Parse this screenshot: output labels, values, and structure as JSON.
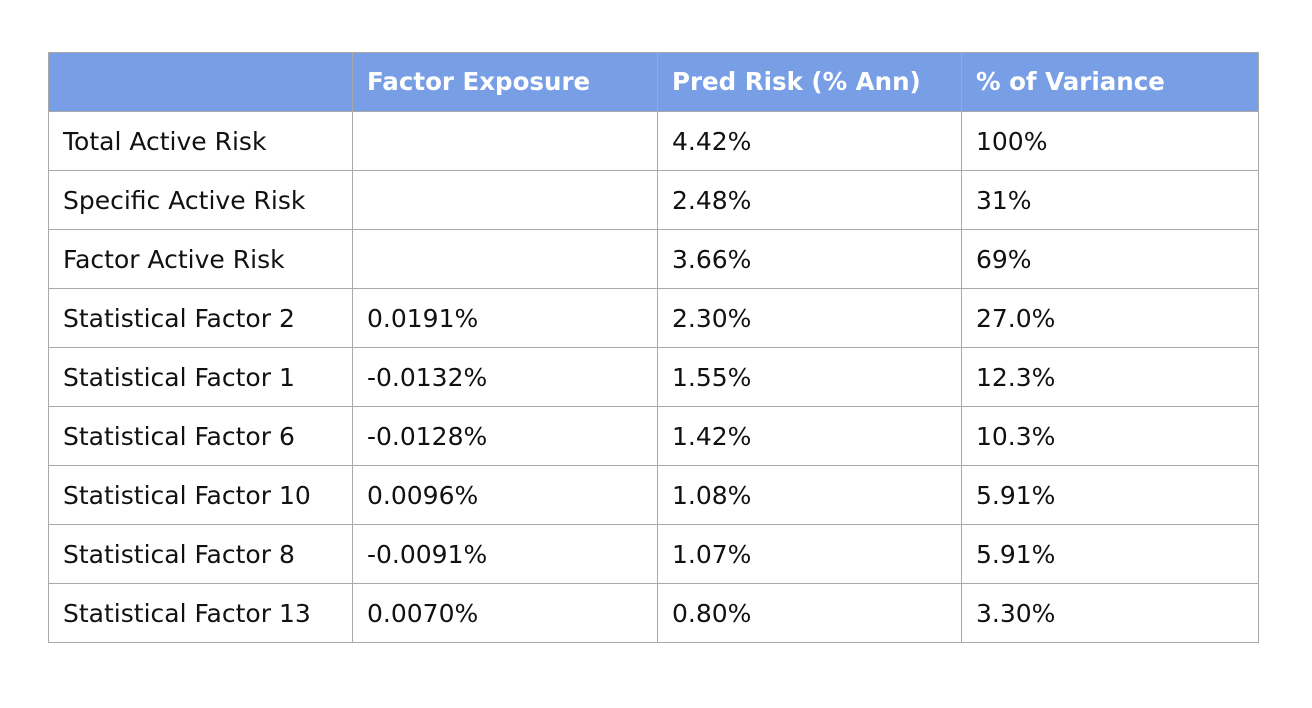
{
  "table": {
    "headers": [
      "",
      "Factor Exposure",
      "Pred Risk (% Ann)",
      "% of Variance"
    ],
    "rows": [
      [
        "Total Active Risk",
        "",
        "4.42%",
        "100%"
      ],
      [
        "Specific Active Risk",
        "",
        "2.48%",
        "31%"
      ],
      [
        "Factor Active Risk",
        "",
        "3.66%",
        "69%"
      ],
      [
        "Statistical Factor 2",
        "0.0191%",
        "2.30%",
        "27.0%"
      ],
      [
        "Statistical Factor 1",
        "-0.0132%",
        "1.55%",
        "12.3%"
      ],
      [
        "Statistical Factor 6",
        "-0.0128%",
        "1.42%",
        "10.3%"
      ],
      [
        "Statistical Factor 10",
        "0.0096%",
        "1.08%",
        "5.91%"
      ],
      [
        "Statistical Factor 8",
        "-0.0091%",
        "1.07%",
        "5.91%"
      ],
      [
        "Statistical Factor 13",
        "0.0070%",
        "0.80%",
        "3.30%"
      ]
    ]
  },
  "colors": {
    "header_background": "#789fe6",
    "header_text": "#ffffff",
    "border": "#a9a9a9",
    "body_text": "#111111"
  }
}
